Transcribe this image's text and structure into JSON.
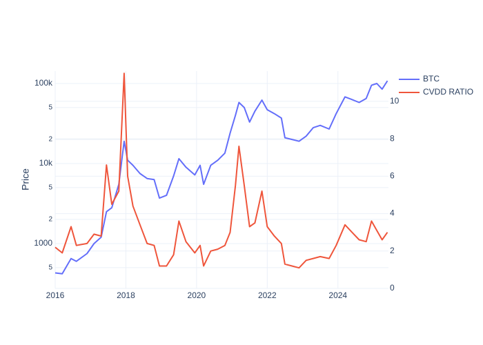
{
  "chart_data": {
    "type": "line",
    "y_label": "Price",
    "yscale": "log",
    "grid": true,
    "legend": "top-right",
    "x": [
      2016,
      2016.2,
      2016.45,
      2016.6,
      2016.9,
      2017.1,
      2017.3,
      2017.45,
      2017.6,
      2017.8,
      2017.95,
      2018.05,
      2018.2,
      2018.4,
      2018.6,
      2018.8,
      2018.95,
      2019.15,
      2019.35,
      2019.5,
      2019.7,
      2019.95,
      2020.1,
      2020.2,
      2020.4,
      2020.6,
      2020.8,
      2020.95,
      2021.1,
      2021.2,
      2021.35,
      2021.5,
      2021.65,
      2021.85,
      2022.0,
      2022.2,
      2022.4,
      2022.5,
      2022.7,
      2022.9,
      2023.1,
      2023.3,
      2023.5,
      2023.75,
      2023.95,
      2024.2,
      2024.4,
      2024.6,
      2024.8,
      2024.95,
      2025.1,
      2025.25,
      2025.4
    ],
    "series": [
      {
        "name": "BTC",
        "color": "#636efa",
        "axis": "y",
        "values": [
          430,
          420,
          650,
          600,
          750,
          1000,
          1200,
          2500,
          2800,
          5500,
          19000,
          11000,
          9500,
          7500,
          6500,
          6300,
          3700,
          4000,
          7000,
          11500,
          9000,
          7200,
          9500,
          5500,
          9500,
          11000,
          13500,
          24000,
          40000,
          58000,
          50000,
          33000,
          45000,
          62000,
          47000,
          42000,
          37000,
          21000,
          20000,
          19000,
          22000,
          28000,
          30000,
          27000,
          42000,
          68000,
          63000,
          58000,
          65000,
          95000,
          100000,
          85000,
          108000
        ]
      },
      {
        "name": "CVDD RATIO",
        "color": "#ef553b",
        "axis": "y2",
        "values": [
          2.2,
          1.9,
          3.3,
          2.3,
          2.4,
          2.9,
          2.8,
          6.6,
          4.5,
          5.2,
          11.5,
          6,
          4.4,
          3.4,
          2.4,
          2.3,
          1.2,
          1.2,
          1.8,
          3.6,
          2.5,
          1.9,
          2.3,
          1.2,
          2.0,
          2.1,
          2.3,
          3.0,
          5.5,
          7.6,
          5.5,
          3.3,
          3.5,
          5.2,
          3.3,
          2.8,
          2.4,
          1.3,
          1.2,
          1.1,
          1.5,
          1.6,
          1.7,
          1.6,
          2.3,
          3.4,
          3.0,
          2.6,
          2.5,
          3.6,
          3.1,
          2.6,
          3.0
        ]
      }
    ],
    "xlim": [
      2016,
      2025.43
    ],
    "xticks": [
      2016,
      2018,
      2020,
      2022,
      2024
    ],
    "ylim": [
      275,
      143000
    ],
    "yticks": [
      {
        "value": 500,
        "label": "5"
      },
      1000,
      {
        "value": 2000,
        "label": "2"
      },
      {
        "value": 5000,
        "label": "5"
      },
      {
        "value": 10000,
        "label": "10k"
      },
      {
        "value": 20000,
        "label": "2"
      },
      {
        "value": 50000,
        "label": "5"
      },
      {
        "value": 100000,
        "label": "100k"
      }
    ],
    "y2lim": [
      0,
      11.62
    ],
    "y2ticks": [
      0,
      2,
      4,
      6,
      8,
      10
    ]
  }
}
